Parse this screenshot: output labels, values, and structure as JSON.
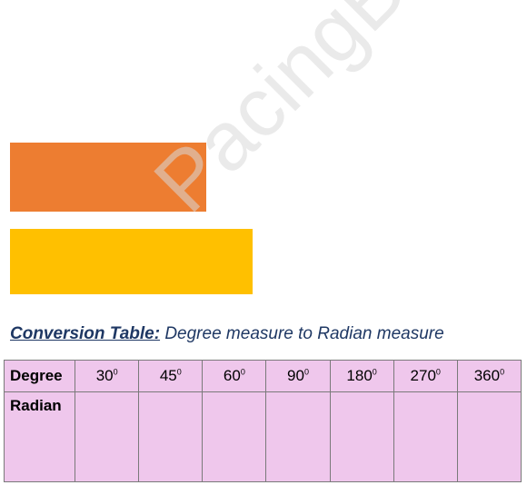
{
  "heading": {
    "bold_label": "Conversion Table:",
    "rest": "Degree measure to Radian measure"
  },
  "table": {
    "row_degree_label": "Degree",
    "row_radian_label": "Radian",
    "degree_symbol": "0",
    "degrees": [
      "30",
      "45",
      "60",
      "90",
      "180",
      "270",
      "360"
    ],
    "radians": [
      "",
      "",
      "",
      "",
      "",
      "",
      ""
    ]
  },
  "watermark": {
    "text": "PacingBooth"
  },
  "colors": {
    "orange_bar": "#ed7d31",
    "yellow_bar": "#ffc000",
    "table_fill": "#efc7ec",
    "heading_text": "#1f3864"
  }
}
